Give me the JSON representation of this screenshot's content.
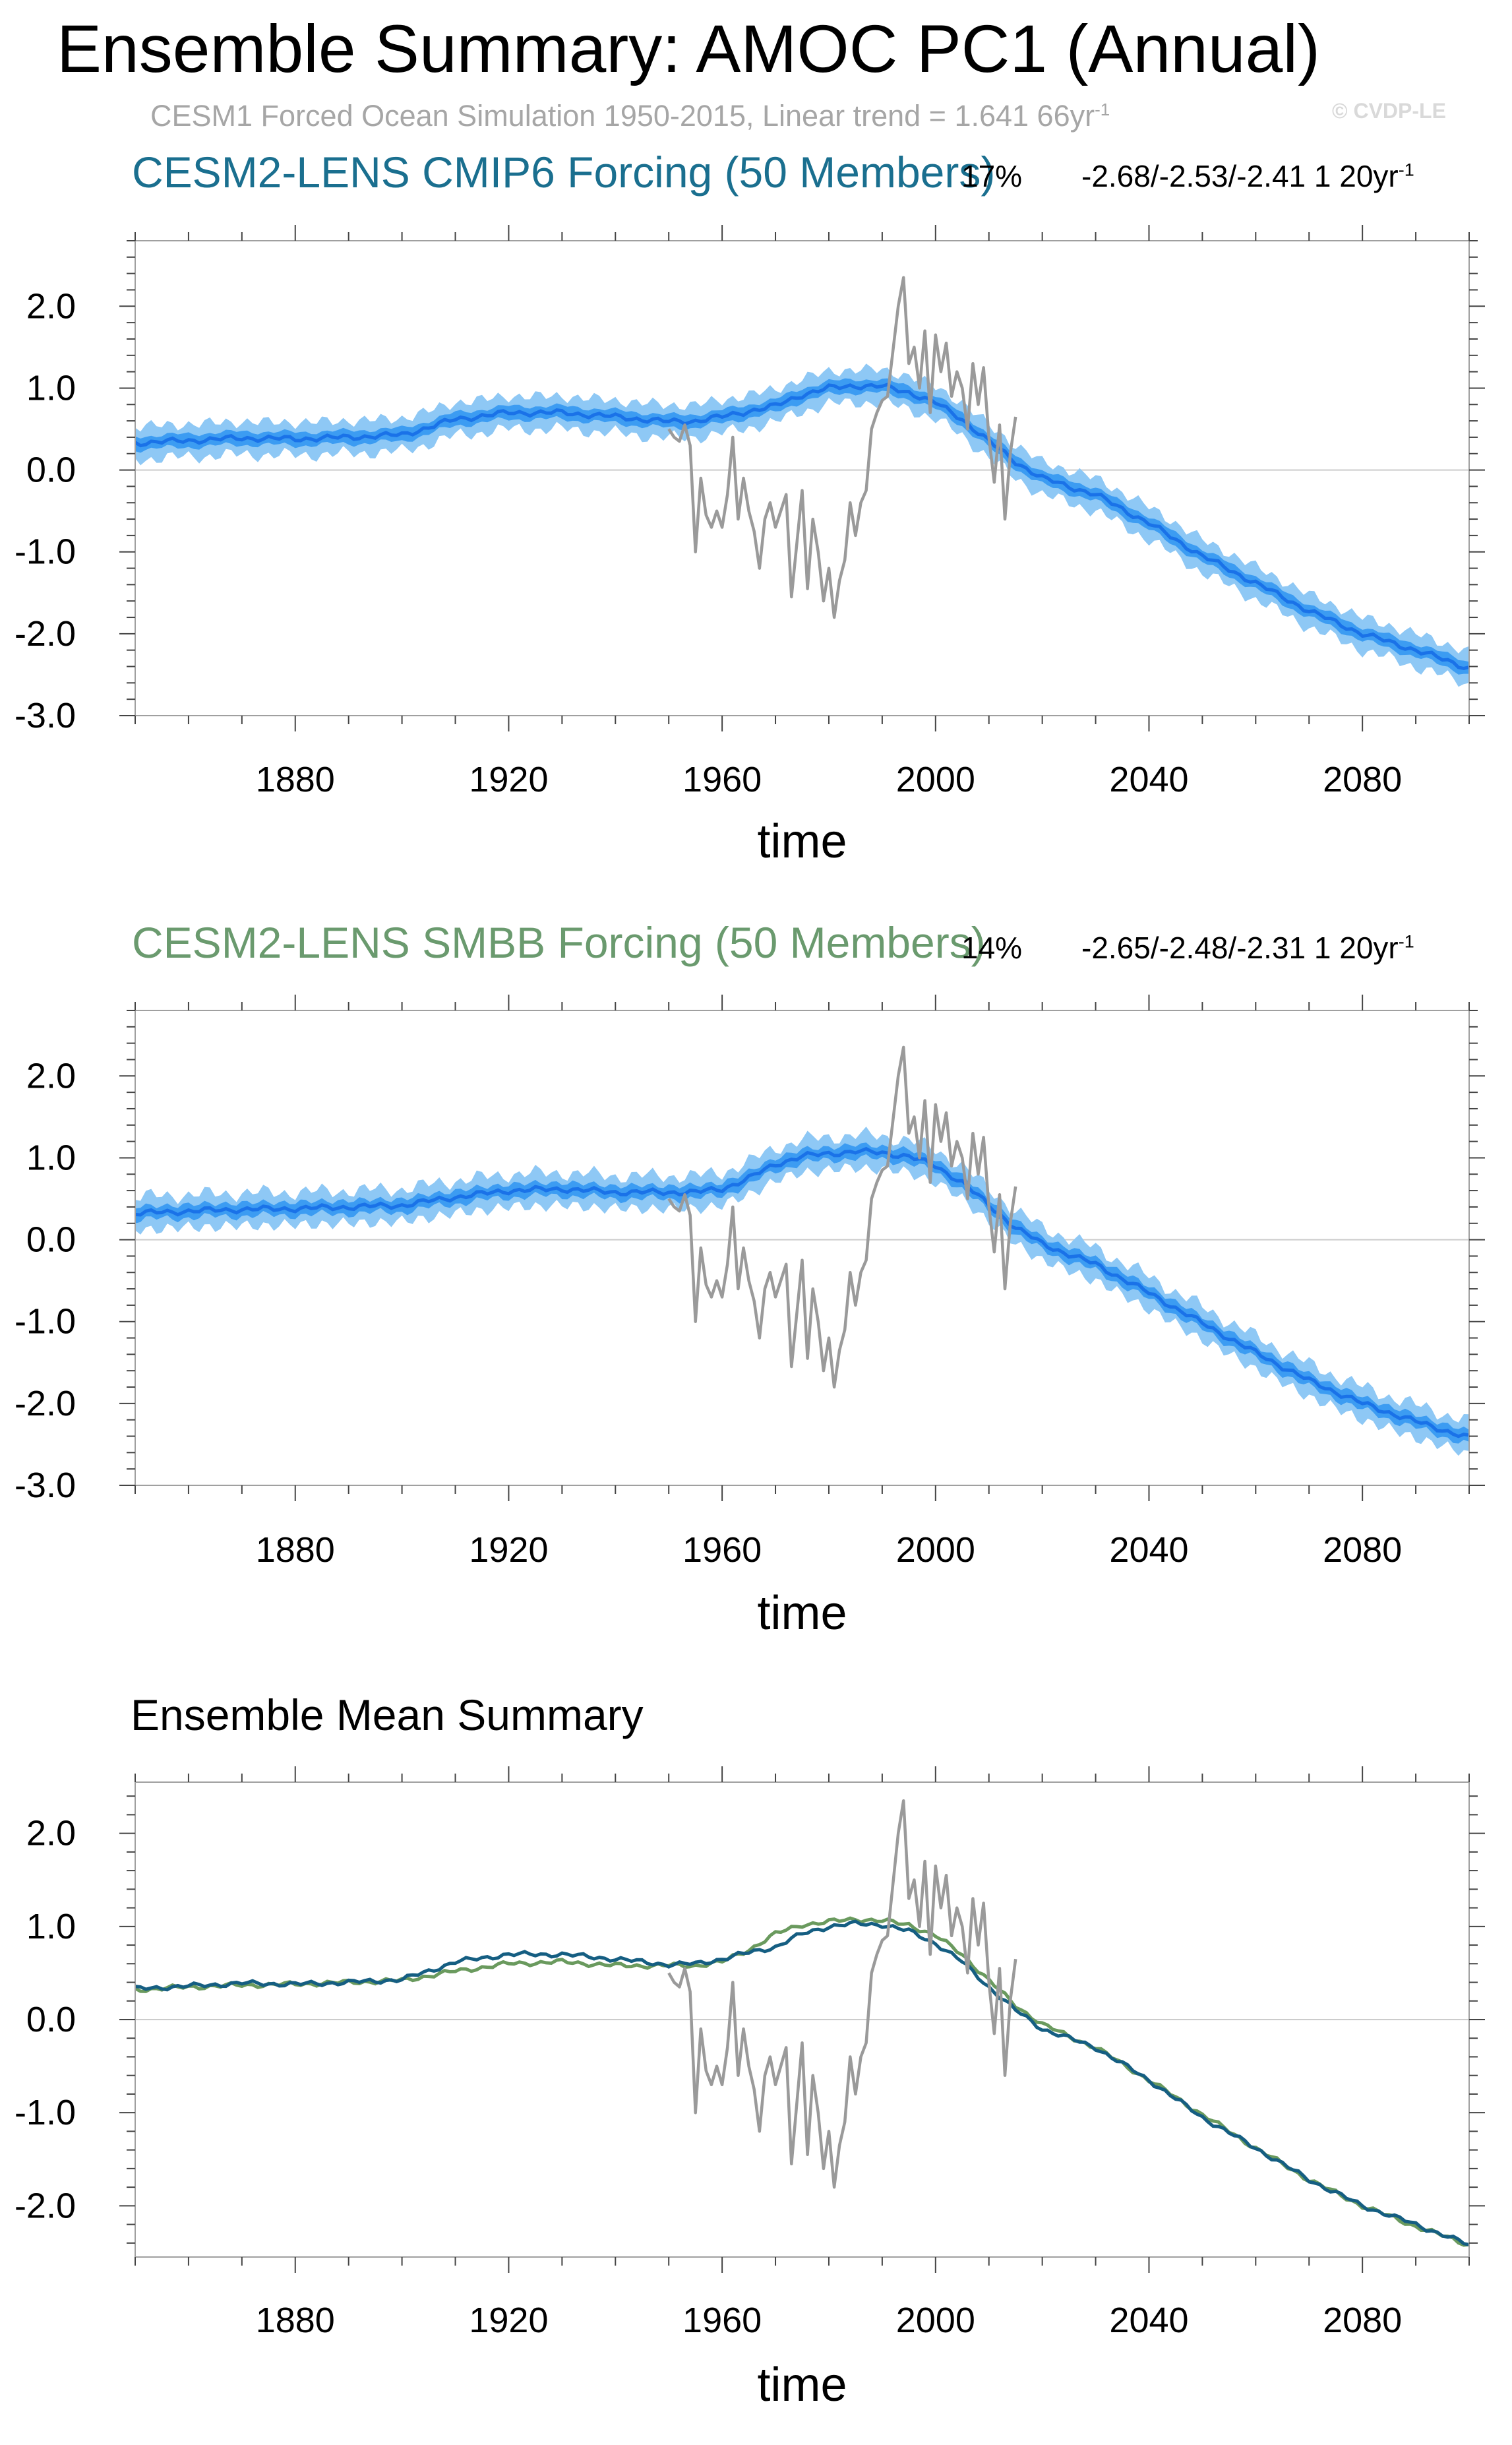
{
  "title": "Ensemble Summary: AMOC PC1 (Annual)",
  "subtitle_text": "CESM1 Forced Ocean Simulation 1950-2015, Linear trend = 1.641 66yr",
  "subtitle_sup": "-1",
  "watermark": "© CVDP-LE",
  "colors": {
    "cmip6_title": "#1a6f8f",
    "smbb_title": "#6a9a6e",
    "band_light": "#8ec8f5",
    "band_dark": "#3c9cf2",
    "mean_line": "#1a72e8",
    "obs_line": "#9a9a9a",
    "cmip6_mean": "#155e82",
    "smbb_mean": "#6a9a5e",
    "zero_line": "#cccccc"
  },
  "chart_data": [
    {
      "type": "line",
      "name": "panel-cmip6",
      "title": "CESM2-LENS CMIP6 Forcing (50 Members)",
      "pct": "17%",
      "trend": "-2.68/-2.53/-2.41 1 20yr",
      "trend_sup": "-1",
      "xlabel": "time",
      "ylabel": "",
      "xlim": [
        1850,
        2100
      ],
      "ylim": [
        -3.0,
        2.8
      ],
      "xticks": [
        1880,
        1920,
        1960,
        2000,
        2040,
        2080
      ],
      "xtick_labels": [
        "1880",
        "1920",
        "1960",
        "2000",
        "2040",
        "2080"
      ],
      "yticks": [
        2.0,
        1.0,
        0.0,
        -1.0,
        -2.0,
        -3.0
      ],
      "ytick_labels": [
        "2.0",
        "1.0",
        "0.0",
        "-1.0",
        "-2.0",
        "-3.0"
      ],
      "ensemble_mean": {
        "x": [
          1850,
          1860,
          1870,
          1880,
          1890,
          1900,
          1905,
          1910,
          1920,
          1930,
          1940,
          1950,
          1955,
          1960,
          1965,
          1970,
          1975,
          1980,
          1985,
          1990,
          1995,
          2000,
          2005,
          2010,
          2015,
          2020,
          2025,
          2030,
          2040,
          2050,
          2060,
          2070,
          2080,
          2090,
          2100
        ],
        "y": [
          0.33,
          0.36,
          0.39,
          0.38,
          0.4,
          0.43,
          0.52,
          0.62,
          0.7,
          0.7,
          0.65,
          0.59,
          0.6,
          0.65,
          0.72,
          0.78,
          0.92,
          1.0,
          1.03,
          1.02,
          0.95,
          0.82,
          0.62,
          0.35,
          0.1,
          -0.1,
          -0.2,
          -0.3,
          -0.65,
          -1.05,
          -1.38,
          -1.72,
          -2.0,
          -2.2,
          -2.42
        ]
      },
      "band_inner_halfwidth": 0.08,
      "band_outer_halfwidth": 0.2
    },
    {
      "type": "line",
      "name": "panel-smbb",
      "title": "CESM2-LENS SMBB Forcing (50 Members)",
      "pct": "14%",
      "trend": "-2.65/-2.48/-2.31 1 20yr",
      "trend_sup": "-1",
      "xlabel": "time",
      "ylabel": "",
      "xlim": [
        1850,
        2100
      ],
      "ylim": [
        -3.0,
        2.8
      ],
      "xticks": [
        1880,
        1920,
        1960,
        2000,
        2040,
        2080
      ],
      "xtick_labels": [
        "1880",
        "1920",
        "1960",
        "2000",
        "2040",
        "2080"
      ],
      "yticks": [
        2.0,
        1.0,
        0.0,
        -1.0,
        -2.0,
        -3.0
      ],
      "ytick_labels": [
        "2.0",
        "1.0",
        "0.0",
        "-1.0",
        "-2.0",
        "-3.0"
      ],
      "ensemble_mean": {
        "x": [
          1850,
          1860,
          1870,
          1880,
          1890,
          1900,
          1910,
          1920,
          1930,
          1940,
          1950,
          1955,
          1960,
          1965,
          1970,
          1975,
          1980,
          1985,
          1990,
          1995,
          2000,
          2005,
          2010,
          2015,
          2020,
          2025,
          2030,
          2040,
          2050,
          2060,
          2070,
          2080,
          2090,
          2100
        ],
        "y": [
          0.32,
          0.35,
          0.37,
          0.38,
          0.4,
          0.42,
          0.52,
          0.6,
          0.62,
          0.58,
          0.58,
          0.58,
          0.62,
          0.75,
          0.92,
          1.02,
          1.05,
          1.08,
          1.06,
          1.02,
          0.9,
          0.7,
          0.42,
          0.15,
          -0.05,
          -0.18,
          -0.3,
          -0.65,
          -1.02,
          -1.38,
          -1.72,
          -2.0,
          -2.22,
          -2.42
        ]
      },
      "band_inner_halfwidth": 0.08,
      "band_outer_halfwidth": 0.2
    },
    {
      "type": "line",
      "name": "panel-ensemble-mean",
      "title": "Ensemble Mean Summary",
      "xlabel": "time",
      "ylabel": "",
      "xlim": [
        1850,
        2100
      ],
      "ylim": [
        -2.55,
        2.55
      ],
      "xticks": [
        1880,
        1920,
        1960,
        2000,
        2040,
        2080
      ],
      "xtick_labels": [
        "1880",
        "1920",
        "1960",
        "2000",
        "2040",
        "2080"
      ],
      "yticks": [
        2.0,
        1.0,
        0.0,
        -1.0,
        -2.0
      ],
      "ytick_labels": [
        "2.0",
        "1.0",
        "0.0",
        "-1.0",
        "-2.0"
      ],
      "series": [
        {
          "name": "CESM2-LENS CMIP6 Forcing",
          "x": [
            1850,
            1860,
            1870,
            1880,
            1890,
            1900,
            1905,
            1910,
            1920,
            1930,
            1940,
            1950,
            1955,
            1960,
            1965,
            1970,
            1975,
            1980,
            1985,
            1990,
            1995,
            2000,
            2005,
            2010,
            2015,
            2020,
            2025,
            2030,
            2040,
            2050,
            2060,
            2070,
            2080,
            2090,
            2100
          ],
          "y": [
            0.33,
            0.36,
            0.39,
            0.38,
            0.4,
            0.43,
            0.52,
            0.62,
            0.7,
            0.7,
            0.65,
            0.59,
            0.6,
            0.65,
            0.72,
            0.78,
            0.92,
            1.0,
            1.03,
            1.02,
            0.95,
            0.82,
            0.62,
            0.35,
            0.1,
            -0.1,
            -0.2,
            -0.3,
            -0.65,
            -1.05,
            -1.38,
            -1.72,
            -2.0,
            -2.2,
            -2.42
          ]
        },
        {
          "name": "CESM2-LENS SMBB Forcing",
          "x": [
            1850,
            1860,
            1870,
            1880,
            1890,
            1900,
            1910,
            1920,
            1930,
            1940,
            1950,
            1955,
            1960,
            1965,
            1970,
            1975,
            1980,
            1985,
            1990,
            1995,
            2000,
            2005,
            2010,
            2015,
            2020,
            2025,
            2030,
            2040,
            2050,
            2060,
            2070,
            2080,
            2090,
            2100
          ],
          "y": [
            0.32,
            0.35,
            0.37,
            0.38,
            0.4,
            0.42,
            0.52,
            0.6,
            0.62,
            0.58,
            0.58,
            0.58,
            0.62,
            0.75,
            0.92,
            1.02,
            1.05,
            1.08,
            1.06,
            1.02,
            0.9,
            0.7,
            0.42,
            0.15,
            -0.05,
            -0.18,
            -0.3,
            -0.65,
            -1.02,
            -1.38,
            -1.72,
            -2.0,
            -2.22,
            -2.42
          ]
        }
      ]
    }
  ],
  "observations": {
    "name": "CESM1 Forced Ocean Simulation",
    "x": [
      1950,
      1951,
      1952,
      1953,
      1954,
      1955,
      1956,
      1957,
      1958,
      1959,
      1960,
      1961,
      1962,
      1963,
      1964,
      1965,
      1966,
      1967,
      1968,
      1969,
      1970,
      1971,
      1972,
      1973,
      1974,
      1975,
      1976,
      1977,
      1978,
      1979,
      1980,
      1981,
      1982,
      1983,
      1984,
      1985,
      1986,
      1987,
      1988,
      1989,
      1990,
      1991,
      1992,
      1993,
      1994,
      1995,
      1996,
      1997,
      1998,
      1999,
      2000,
      2001,
      2002,
      2003,
      2004,
      2005,
      2006,
      2007,
      2008,
      2009,
      2010,
      2011,
      2012,
      2013,
      2014,
      2015
    ],
    "y": [
      0.5,
      0.4,
      0.35,
      0.55,
      0.3,
      -1.0,
      -0.1,
      -0.55,
      -0.7,
      -0.5,
      -0.7,
      -0.3,
      0.4,
      -0.6,
      -0.1,
      -0.5,
      -0.75,
      -1.2,
      -0.6,
      -0.4,
      -0.7,
      -0.5,
      -0.3,
      -1.55,
      -0.9,
      -0.25,
      -1.45,
      -0.6,
      -1.0,
      -1.6,
      -1.2,
      -1.8,
      -1.35,
      -1.1,
      -0.4,
      -0.8,
      -0.4,
      -0.25,
      0.5,
      0.7,
      0.85,
      0.9,
      1.45,
      2.0,
      2.35,
      1.3,
      1.5,
      1.0,
      1.7,
      0.7,
      1.65,
      1.2,
      1.55,
      0.9,
      1.2,
      1.0,
      0.5,
      1.3,
      0.8,
      1.25,
      0.4,
      -0.15,
      0.55,
      -0.6,
      0.2,
      0.65
    ]
  }
}
